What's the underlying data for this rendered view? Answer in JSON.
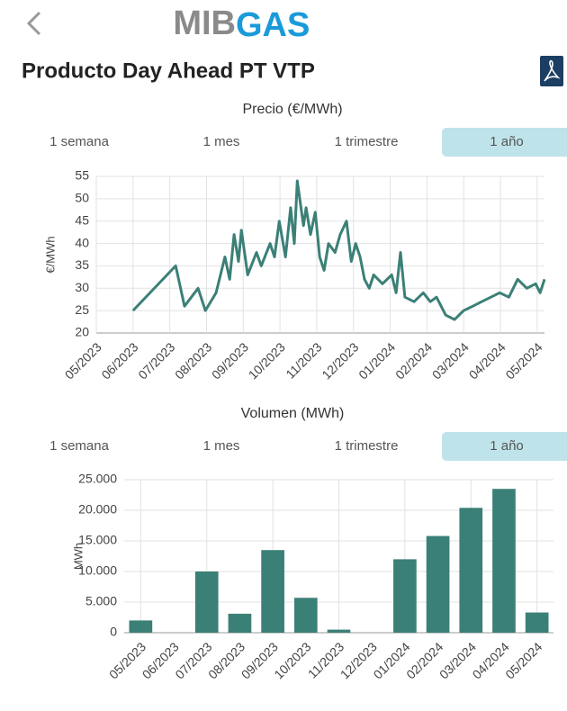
{
  "header": {
    "logo_left": "MIB",
    "logo_right": "GAS",
    "title": "Producto Day Ahead PT VTP"
  },
  "chart_data": [
    {
      "type": "line",
      "title": "Precio (€/MWh)",
      "y_label": "€/MWh",
      "range_buttons": [
        "1 semana",
        "1 mes",
        "1 trimestre",
        "1 año"
      ],
      "active_range": 3,
      "color": "#3b8077",
      "grid": true,
      "x": [
        1.0,
        2.16,
        2.4,
        2.77,
        2.97,
        3.26,
        3.5,
        3.63,
        3.75,
        3.87,
        3.95,
        4.12,
        4.36,
        4.49,
        4.73,
        4.85,
        4.98,
        5.15,
        5.29,
        5.39,
        5.47,
        5.64,
        5.71,
        5.83,
        5.96,
        6.08,
        6.2,
        6.32,
        6.5,
        6.64,
        6.81,
        6.94,
        7.06,
        7.18,
        7.3,
        7.43,
        7.55,
        7.79,
        8.04,
        8.16,
        8.28,
        8.4,
        8.65,
        8.9,
        9.09,
        9.26,
        9.51,
        9.75,
        10.0,
        10.25,
        10.49,
        10.74,
        10.98,
        11.23,
        11.47,
        11.72,
        11.96,
        12.08,
        12.2
      ],
      "values": [
        25,
        35,
        26,
        30,
        25,
        29,
        37,
        32,
        42,
        36,
        43,
        33,
        38,
        35,
        40,
        37,
        45,
        37,
        48,
        40,
        54,
        44,
        48,
        42,
        47,
        37,
        34,
        40,
        38,
        42,
        45,
        36,
        40,
        37,
        32,
        30,
        33,
        31,
        33,
        29,
        38,
        28,
        27,
        29,
        27,
        28,
        24,
        23,
        25,
        26,
        27,
        28,
        29,
        28,
        32,
        30,
        31,
        29,
        32
      ],
      "xlim": [
        0,
        12.2
      ],
      "xticks": [
        {
          "value": 0,
          "label": "05/2023"
        },
        {
          "value": 1,
          "label": "06/2023"
        },
        {
          "value": 2,
          "label": "07/2023"
        },
        {
          "value": 3,
          "label": "08/2023"
        },
        {
          "value": 4,
          "label": "09/2023"
        },
        {
          "value": 5,
          "label": "10/2023"
        },
        {
          "value": 6,
          "label": "11/2023"
        },
        {
          "value": 7,
          "label": "12/2023"
        },
        {
          "value": 8,
          "label": "01/2024"
        },
        {
          "value": 9,
          "label": "02/2024"
        },
        {
          "value": 10,
          "label": "03/2024"
        },
        {
          "value": 11,
          "label": "04/2024"
        },
        {
          "value": 12,
          "label": "05/2024"
        }
      ],
      "ylim": [
        20,
        55
      ],
      "yticks": [
        20,
        25,
        30,
        35,
        40,
        45,
        50,
        55
      ]
    },
    {
      "type": "bar",
      "title": "Volumen (MWh)",
      "y_label": "MWh",
      "range_buttons": [
        "1 semana",
        "1 mes",
        "1 trimestre",
        "1 año"
      ],
      "active_range": 3,
      "color": "#3b8077",
      "grid": true,
      "categories": [
        "05/2023",
        "06/2023",
        "07/2023",
        "08/2023",
        "09/2023",
        "10/2023",
        "11/2023",
        "12/2023",
        "01/2024",
        "02/2024",
        "03/2024",
        "04/2024",
        "05/2024"
      ],
      "values": [
        2000,
        0,
        10000,
        3100,
        13500,
        5700,
        500,
        0,
        12000,
        15800,
        20400,
        23500,
        3300
      ],
      "ylim": [
        0,
        25000
      ],
      "yticks": [
        0,
        {
          "value": 5000,
          "label": "5.000"
        },
        {
          "value": 10000,
          "label": "10.000"
        },
        {
          "value": 15000,
          "label": "15.000"
        },
        {
          "value": 20000,
          "label": "20.000"
        },
        {
          "value": 25000,
          "label": "25.000"
        }
      ]
    }
  ]
}
